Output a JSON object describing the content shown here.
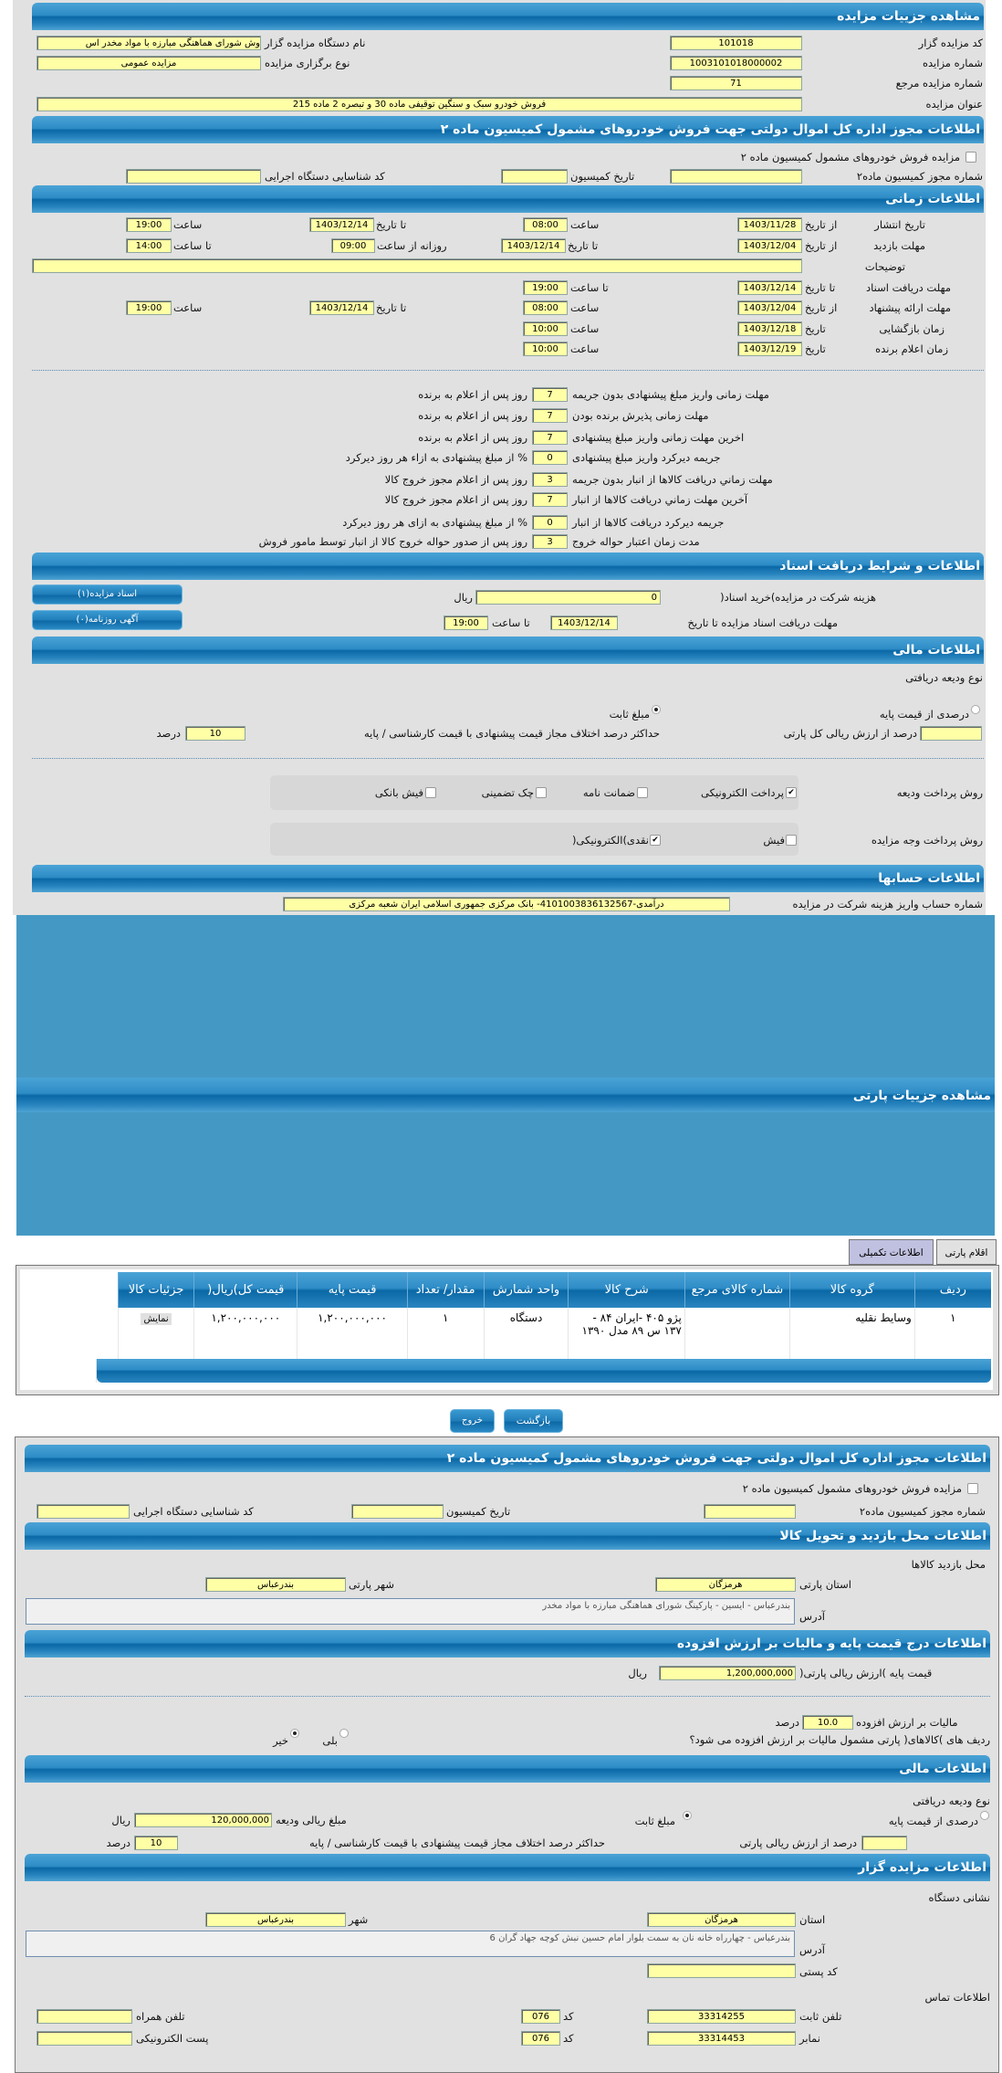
{
  "auction": {
    "title": "مشاهده جزییات مزایده",
    "code_label": "کد مزایده گزار",
    "code": "101018",
    "org_label": "نام دستگاه مزایده گزار",
    "org": "وش شورای هماهنگی مبارزه با مواد مخدر اس",
    "number_label": "شماره مزایده",
    "number": "1003101018000002",
    "type_label": "نوع برگزاری مزایده",
    "type": "مزایده عمومی",
    "ref_label": "شماره مزایده مرجع",
    "ref": "71",
    "subject_label": "عنوان مزایده",
    "subject": "فروش خودرو سبک و سنگین توقیفی ماده 30 و تبصره 2 ماده 215"
  },
  "permit": {
    "title": "اطلاعات مجوز اداره کل اموال دولتی جهت فروش خودروهای مشمول کمیسیون ماده ۲",
    "checkbox_label": "مزایده فروش خودروهای مشمول کمیسیون ماده ۲",
    "checked": false,
    "permit_no_label": "شماره مجوز کمیسیون ماده۲",
    "permit_no": "",
    "date_label": "تاریخ کمیسیون",
    "date": "",
    "exec_code_label": "کد شناسایی دستگاه اجرایی",
    "exec_code": ""
  },
  "timing": {
    "title": "اطلاعات زمانی",
    "publish": {
      "label": "تاریخ انتشار",
      "from_label": "از تاریخ",
      "from": "1403/11/28",
      "time_label": "ساعت",
      "time": "08:00",
      "to_label": "تا تاریخ",
      "to": "1403/12/14",
      "time2_label": "ساعت",
      "time2": "19:00"
    },
    "visit": {
      "label": "مهلت بازدید",
      "from_label": "از تاریخ",
      "from": "1403/12/04",
      "to_label": "تا تاریخ",
      "to": "1403/12/14",
      "daily_label": "روزانه از ساعت",
      "daily_from": "09:00",
      "until_label": "تا ساعت",
      "until": "14:00"
    },
    "notes_label": "توضیحات",
    "notes": "",
    "docs": {
      "label": "مهلت دریافت اسناد",
      "to_label": "تا تاریخ",
      "to": "1403/12/14",
      "time_label": "تا ساعت",
      "time": "19:00"
    },
    "offer": {
      "label": "مهلت ارائه پیشنهاد",
      "from_label": "از تاریخ",
      "from": "1403/12/04",
      "time_label": "ساعت",
      "time": "08:00",
      "to_label": "تا تاریخ",
      "to": "1403/12/14",
      "time2_label": "ساعت",
      "time2": "19:00"
    },
    "opening": {
      "label": "زمان بازگشایی",
      "date_label": "تاریخ",
      "date": "1403/12/18",
      "time_label": "ساعت",
      "time": "10:00"
    },
    "winner": {
      "label": "زمان اعلام برنده",
      "date_label": "تاریخ",
      "date": "1403/12/19",
      "time_label": "ساعت",
      "time": "10:00"
    }
  },
  "rules": [
    {
      "label": "مهلت زمانی واریز مبلغ پیشنهادی بدون جریمه",
      "value": "7",
      "suffix": "روز پس از اعلام به برنده"
    },
    {
      "label": "مهلت زمانی پذیرش برنده بودن",
      "value": "7",
      "suffix": "روز پس از اعلام به برنده"
    },
    {
      "label": "اخرین مهلت زمانی واریز مبلغ پیشنهادی",
      "value": "7",
      "suffix": "روز پس از اعلام به برنده"
    },
    {
      "label": "جریمه دیرکرد واریز مبلغ پیشنهادی",
      "value": "0",
      "suffix": "% از مبلغ پیشنهادی به ازاء هر روز دیرکرد"
    },
    {
      "label": "مهلت زماني دريافت كالاها از انبار بدون جريمه",
      "value": "3",
      "suffix": "روز پس از اعلام مجوز خروج کالا"
    },
    {
      "label": "آخرین مهلت زماني دريافت كالاها از انبار",
      "value": "7",
      "suffix": "روز پس از اعلام مجوز خروج کالا"
    },
    {
      "label": "جریمه دیرکرد دریافت کالاها از انبار",
      "value": "0",
      "suffix": "% از مبلغ پیشنهادی به ازای هر روز دیرکرد"
    },
    {
      "label": "مدت زمان اعتبار حواله خروج",
      "value": "3",
      "suffix": "روز پس از صدور حواله خروج کالا از انبار توسط مامور فروش"
    }
  ],
  "documents": {
    "title": "اطلاعات و شرایط دریافت اسناد",
    "fee_label": "هزینه شرکت در مزایده)خرید اسناد(",
    "fee": "0",
    "fee_unit": "ریال",
    "deadline_label": "مهلت دریافت اسناد مزایده تا تاریخ",
    "deadline_date": "1403/12/14",
    "deadline_time_label": "تا ساعت",
    "deadline_time": "19:00",
    "docs_button": "اسناد مزایده(۱)",
    "ads_button": "آگهی روزنامه(۰)"
  },
  "financial": {
    "title": "اطلاعات مالی",
    "deposit_type_label": "نوع ودیعه دریافتی",
    "option_percent": "درصدی از قیمت پایه",
    "option_fixed": "مبلغ ثابت",
    "selected": "مبلغ ثابت",
    "percent_label": "درصد از ارزش ریالی کل پارتی",
    "percent": "",
    "max_diff_label": "حداکثر درصد اختلاف مجاز قیمت پیشنهادی با قیمت کارشناسی / پایه",
    "max_diff": "10",
    "max_diff_unit": "درصد"
  },
  "payment": {
    "deposit_label": "روش پرداخت ودیعه",
    "deposit_methods": [
      {
        "label": "پرداخت الکترونیکی",
        "checked": true
      },
      {
        "label": "ضمانت نامه",
        "checked": false
      },
      {
        "label": "چک تضمینی",
        "checked": false
      },
      {
        "label": "فیش بانکی",
        "checked": false
      }
    ],
    "auction_label": "روش پرداخت وجه مزایده",
    "auction_methods": [
      {
        "label": "فیش",
        "checked": false
      },
      {
        "label": "نقدی)الکترونیکی(",
        "checked": true
      }
    ]
  },
  "accounts": {
    "title": "اطلاعات حسابها",
    "account_label": "شماره حساب واریز هزینه شرکت در مزایده",
    "account": "درآمدی-4101003836132567- بانک مرکزی جمهوری اسلامی ایران شعبه مرکزی"
  },
  "party": {
    "title": "مشاهده جزییات پارتی",
    "tabs": [
      {
        "label": "اقلام پارتی",
        "active": false
      },
      {
        "label": "اطلاعات تکمیلی",
        "active": true
      }
    ],
    "columns": [
      "ردیف",
      "گروه کالا",
      "شماره کالای مرجع",
      "شرح کالا",
      "واحد شمارش",
      "مقدار/ تعداد",
      "قیمت پایه",
      "قیمت کل)ریال(",
      "جزئیات کالا"
    ],
    "rows": [
      {
        "row": "۱",
        "group": "وسایط نقلیه",
        "ref": "",
        "desc": "پژو ۴۰۵ -ایران ۸۴ - ۱۳۷ س ۸۹ مدل ۱۳۹۰",
        "unit": "دستگاه",
        "qty": "۱",
        "base": "۱,۲۰۰,۰۰۰,۰۰۰",
        "total": "۱,۲۰۰,۰۰۰,۰۰۰",
        "details": "نمایش"
      }
    ]
  },
  "buttons": {
    "back": "بازگشت",
    "exit": "خروج"
  },
  "permit2": {
    "title": "اطلاعات مجوز اداره کل اموال دولتی جهت فروش خودروهای مشمول کمیسیون ماده ۲",
    "checkbox_label": "مزایده فروش خودروهای مشمول کمیسیون ماده ۲",
    "permit_no_label": "شماره مجوز کمیسیون ماده۲",
    "date_label": "تاریخ کمیسیون",
    "exec_code_label": "کد شناسایی دستگاه اجرایی"
  },
  "visit_place": {
    "title": "اطلاعات محل بازدید و تحویل کالا",
    "subtitle": "محل بازدید کالاها",
    "province_label": "استان پارتی",
    "province": "هرمزگان",
    "city_label": "شهر پارتی",
    "city": "بندرعباس",
    "address_label": "آدرس",
    "address": "بندرعباس - ایسین - پارکینگ شورای هماهنگی مبارزه با مواد مخدر"
  },
  "pricing": {
    "title": "اطلاعات درج قیمت پایه و مالیات بر ارزش افزوده",
    "base_label": "قیمت پایه )ارزش ریالی پارتی(",
    "base": "1,200,000,000",
    "base_unit": "ریال",
    "vat_label": "مالیات بر ارزش افزوده",
    "vat": "10.0",
    "vat_unit": "درصد",
    "vat_question": "ردیف های )کالاهای( پارتی مشمول مالیات بر ارزش افزوده می شود؟",
    "yes": "بلی",
    "no": "خیر",
    "selected": "خیر"
  },
  "financial2": {
    "title": "اطلاعات مالی",
    "deposit_type_label": "نوع ودیعه دریافتی",
    "option_percent": "درصدی از قیمت پایه",
    "option_fixed": "مبلغ ثابت",
    "selected": "مبلغ ثابت",
    "amount_label": "مبلغ ریالی ودیعه",
    "amount": "120,000,000",
    "amount_unit": "ریال",
    "percent_label": "درصد از ارزش ریالی پارتی",
    "percent": "",
    "max_diff_label": "حداکثر درصد اختلاف مجاز قیمت پیشنهادی با قیمت کارشناسی / پایه",
    "max_diff": "10",
    "max_diff_unit": "درصد"
  },
  "auctioneer": {
    "title": "اطلاعات مزایده گزار",
    "address_title": "نشانی دستگاه",
    "province_label": "استان",
    "province": "هرمزگان",
    "city_label": "شهر",
    "city": "بندرعباس",
    "address_label": "آدرس",
    "address": "بندرعباس - چهارراه خانه نان به سمت بلوار امام حسین نبش کوچه جهاد گران 6",
    "postal_label": "کد پستی",
    "postal": "",
    "contact_title": "اطلاعات تماس",
    "phone_label": "تلفن ثابت",
    "phone": "33314255",
    "phone_code_label": "کد",
    "phone_code": "076",
    "mobile_label": "تلفن همراه",
    "mobile": "",
    "fax_label": "نمابر",
    "fax": "33314453",
    "fax_code_label": "کد",
    "fax_code": "076",
    "email_label": "پست الکترونیکی",
    "email": ""
  },
  "colors": {
    "header": "#0a68a6",
    "input_bg": "#ffffa6",
    "panel_bg": "#e1e1e1",
    "tab_active": "#c0c0e0"
  }
}
